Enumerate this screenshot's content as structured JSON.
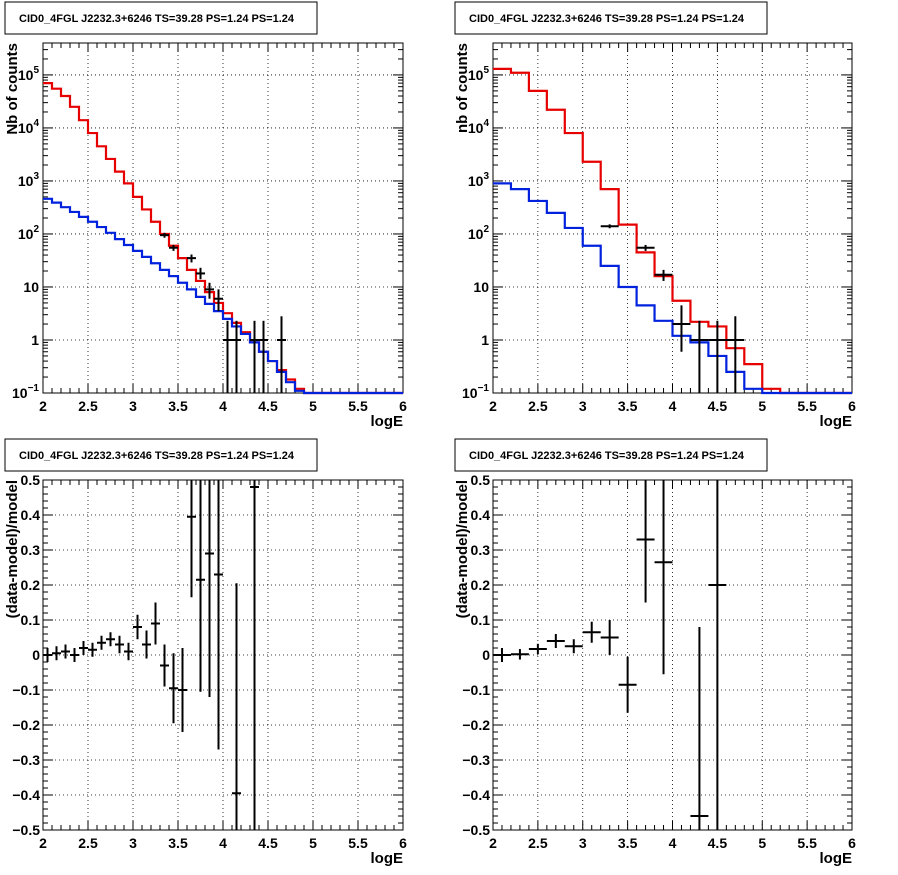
{
  "colors": {
    "data": "#000000",
    "model_total": "#e60000",
    "model_component": "#0022dd"
  },
  "chart_data": [
    {
      "id": "counts-left",
      "type": "line",
      "title": "CID0_4FGL J2232.3+6246 TS=39.28 PS=1.24 PS=1.24",
      "xlabel": "logE",
      "ylabel": "Nb of counts",
      "xlim": [
        2,
        6
      ],
      "ylim": [
        0.1,
        400000
      ],
      "yscale": "log",
      "grid": true,
      "xticks": [
        2,
        2.5,
        3,
        3.5,
        4,
        4.5,
        5,
        5.5,
        6
      ],
      "xtick_labels": [
        "2",
        "2.5",
        "3",
        "3.5",
        "4",
        "4.5",
        "5",
        "5.5",
        "6"
      ],
      "yticks": [
        0.1,
        1,
        10,
        100,
        1000,
        10000,
        100000
      ],
      "ytick_labels": [
        {
          "base": "10",
          "exp": "−1"
        },
        {
          "base": "1",
          "exp": ""
        },
        {
          "base": "10",
          "exp": ""
        },
        {
          "base": "10",
          "exp": "2"
        },
        {
          "base": "10",
          "exp": "3"
        },
        {
          "base": "10",
          "exp": "4"
        },
        {
          "base": "10",
          "exp": "5"
        }
      ],
      "bin_edges": [
        2.0,
        2.1,
        2.2,
        2.3,
        2.4,
        2.5,
        2.6,
        2.7,
        2.8,
        2.9,
        3.0,
        3.1,
        3.2,
        3.3,
        3.4,
        3.5,
        3.6,
        3.7,
        3.8,
        3.9,
        4.0,
        4.1,
        4.2,
        4.3,
        4.4,
        4.5,
        4.6,
        4.7,
        4.8,
        4.9,
        5.0,
        5.1,
        5.2,
        5.3,
        5.4,
        5.5,
        5.6,
        5.7,
        5.8,
        5.9,
        6.0
      ],
      "series": [
        {
          "key": "model_total",
          "style": "step",
          "values": [
            70000,
            55000,
            40000,
            25000,
            14000,
            8000,
            4500,
            2600,
            1500,
            900,
            500,
            290,
            170,
            100,
            60,
            35,
            21,
            13,
            8,
            5,
            3.2,
            2.1,
            1.4,
            0.9,
            0.6,
            0.4,
            0.27,
            0.18,
            0.12,
            0.1,
            0.1,
            0.1,
            0.1,
            0.1,
            0.1,
            0.1,
            0.1,
            0.1,
            0.1,
            0.1
          ]
        },
        {
          "key": "model_component",
          "style": "step",
          "values": [
            460,
            390,
            320,
            260,
            210,
            170,
            135,
            105,
            80,
            62,
            48,
            37,
            28,
            21,
            16,
            12,
            9,
            6.5,
            4.8,
            3.5,
            2.5,
            1.8,
            1.3,
            0.9,
            0.6,
            0.4,
            0.25,
            0.16,
            0.11,
            0.1,
            0.1,
            0.1,
            0.1,
            0.1,
            0.1,
            0.1,
            0.1,
            0.1,
            0.1,
            0.1
          ]
        },
        {
          "key": "data",
          "style": "points",
          "points": [
            {
              "x": 3.35,
              "y": 95,
              "yerr": [
                10,
                10
              ]
            },
            {
              "x": 3.45,
              "y": 55,
              "yerr": [
                7,
                7
              ]
            },
            {
              "x": 3.65,
              "y": 35,
              "yerr": [
                6,
                6
              ]
            },
            {
              "x": 3.75,
              "y": 18,
              "yerr": [
                4,
                5
              ]
            },
            {
              "x": 3.85,
              "y": 9,
              "yerr": [
                3,
                3
              ]
            },
            {
              "x": 3.95,
              "y": 6,
              "yerr": [
                2.5,
                3
              ]
            },
            {
              "x": 4.05,
              "y": 1,
              "yerr": [
                0.95,
                1.3
              ]
            },
            {
              "x": 4.15,
              "y": 1,
              "yerr": [
                0.95,
                1.3
              ]
            },
            {
              "x": 4.35,
              "y": 1,
              "yerr": [
                0.95,
                1.3
              ]
            },
            {
              "x": 4.45,
              "y": 1,
              "yerr": [
                0.95,
                1.3
              ]
            },
            {
              "x": 4.65,
              "y": 1,
              "yerr": [
                0.95,
                1.8
              ]
            }
          ]
        }
      ]
    },
    {
      "id": "counts-right",
      "type": "line",
      "title": "CID0_4FGL J2232.3+6246 TS=39.28 PS=1.24 PS=1.24",
      "xlabel": "logE",
      "ylabel": "nb of counts",
      "xlim": [
        2,
        6
      ],
      "ylim": [
        0.1,
        400000
      ],
      "yscale": "log",
      "grid": true,
      "xticks": [
        2,
        2.5,
        3,
        3.5,
        4,
        4.5,
        5,
        5.5,
        6
      ],
      "xtick_labels": [
        "2",
        "2.5",
        "3",
        "3.5",
        "4",
        "4.5",
        "5",
        "5.5",
        "6"
      ],
      "yticks": [
        0.1,
        1,
        10,
        100,
        1000,
        10000,
        100000
      ],
      "ytick_labels": [
        {
          "base": "10",
          "exp": "−1"
        },
        {
          "base": "1",
          "exp": ""
        },
        {
          "base": "10",
          "exp": ""
        },
        {
          "base": "10",
          "exp": "2"
        },
        {
          "base": "10",
          "exp": "3"
        },
        {
          "base": "10",
          "exp": "4"
        },
        {
          "base": "10",
          "exp": "5"
        }
      ],
      "bin_edges": [
        2.0,
        2.2,
        2.4,
        2.6,
        2.8,
        3.0,
        3.2,
        3.4,
        3.6,
        3.8,
        4.0,
        4.2,
        4.4,
        4.6,
        4.8,
        5.0,
        5.2,
        5.4,
        5.6,
        5.8,
        6.0
      ],
      "series": [
        {
          "key": "model_total",
          "style": "step",
          "values": [
            130000,
            110000,
            50000,
            22000,
            8000,
            2300,
            700,
            150,
            45,
            16,
            5.5,
            2.2,
            1.8,
            0.7,
            0.35,
            0.12,
            0.1,
            0.1,
            0.1,
            0.1
          ]
        },
        {
          "key": "model_component",
          "style": "step",
          "values": [
            900,
            700,
            420,
            250,
            130,
            60,
            25,
            10,
            4.5,
            2.3,
            1.2,
            0.9,
            0.5,
            0.25,
            0.12,
            0.1,
            0.1,
            0.1,
            0.1,
            0.1
          ]
        },
        {
          "key": "data",
          "style": "points",
          "points": [
            {
              "x": 3.3,
              "y": 140,
              "yerr": [
                12,
                12
              ]
            },
            {
              "x": 3.7,
              "y": 55,
              "yerr": [
                7,
                7
              ]
            },
            {
              "x": 3.9,
              "y": 17,
              "yerr": [
                4,
                4
              ]
            },
            {
              "x": 4.1,
              "y": 2,
              "yerr": [
                1.4,
                2.5
              ]
            },
            {
              "x": 4.3,
              "y": 1,
              "yerr": [
                0.95,
                1.3
              ]
            },
            {
              "x": 4.5,
              "y": 1,
              "yerr": [
                0.95,
                1.3
              ]
            },
            {
              "x": 4.7,
              "y": 1,
              "yerr": [
                0.95,
                1.8
              ]
            }
          ]
        }
      ]
    },
    {
      "id": "residuals-left",
      "type": "scatter",
      "title": "CID0_4FGL J2232.3+6246 TS=39.28 PS=1.24 PS=1.24",
      "xlabel": "logE",
      "ylabel": "(data-model)/model",
      "xlim": [
        2,
        6
      ],
      "ylim": [
        -0.5,
        0.5
      ],
      "yscale": "linear",
      "grid": true,
      "xticks": [
        2,
        2.5,
        3,
        3.5,
        4,
        4.5,
        5,
        5.5,
        6
      ],
      "xtick_labels": [
        "2",
        "2.5",
        "3",
        "3.5",
        "4",
        "4.5",
        "5",
        "5.5",
        "6"
      ],
      "yticks": [
        -0.5,
        -0.4,
        -0.3,
        -0.2,
        -0.1,
        0,
        0.1,
        0.2,
        0.3,
        0.4,
        0.5
      ],
      "ytick_labels": [
        "−0.5",
        "−0.4",
        "−0.3",
        "−0.2",
        "−0.1",
        "0",
        "0.1",
        "0.2",
        "0.3",
        "0.4",
        "0.5"
      ],
      "series": [
        {
          "key": "data",
          "style": "points",
          "xhalf": 0.05,
          "points": [
            {
              "x": 2.05,
              "y": 0.0,
              "yerr": [
                0.02,
                0.02
              ]
            },
            {
              "x": 2.15,
              "y": 0.005,
              "yerr": [
                0.02,
                0.02
              ]
            },
            {
              "x": 2.25,
              "y": 0.01,
              "yerr": [
                0.02,
                0.02
              ]
            },
            {
              "x": 2.35,
              "y": 0.0,
              "yerr": [
                0.02,
                0.02
              ]
            },
            {
              "x": 2.45,
              "y": 0.02,
              "yerr": [
                0.02,
                0.02
              ]
            },
            {
              "x": 2.55,
              "y": 0.015,
              "yerr": [
                0.02,
                0.02
              ]
            },
            {
              "x": 2.65,
              "y": 0.035,
              "yerr": [
                0.02,
                0.02
              ]
            },
            {
              "x": 2.75,
              "y": 0.045,
              "yerr": [
                0.02,
                0.02
              ]
            },
            {
              "x": 2.85,
              "y": 0.03,
              "yerr": [
                0.025,
                0.025
              ]
            },
            {
              "x": 2.95,
              "y": 0.01,
              "yerr": [
                0.025,
                0.025
              ]
            },
            {
              "x": 3.05,
              "y": 0.08,
              "yerr": [
                0.035,
                0.035
              ]
            },
            {
              "x": 3.15,
              "y": 0.03,
              "yerr": [
                0.04,
                0.04
              ]
            },
            {
              "x": 3.25,
              "y": 0.09,
              "yerr": [
                0.06,
                0.06
              ]
            },
            {
              "x": 3.35,
              "y": -0.03,
              "yerr": [
                0.06,
                0.06
              ]
            },
            {
              "x": 3.45,
              "y": -0.095,
              "yerr": [
                0.1,
                0.1
              ]
            },
            {
              "x": 3.55,
              "y": -0.1,
              "yerr": [
                0.12,
                0.12
              ]
            },
            {
              "x": 3.65,
              "y": 0.395,
              "yerr": [
                0.23,
                0.23
              ]
            },
            {
              "x": 3.75,
              "y": 0.215,
              "yerr": [
                0.32,
                0.32
              ]
            },
            {
              "x": 3.85,
              "y": 0.29,
              "yerr": [
                0.41,
                0.41
              ]
            },
            {
              "x": 3.95,
              "y": 0.23,
              "yerr": [
                0.5,
                0.5
              ]
            },
            {
              "x": 4.15,
              "y": -0.395,
              "yerr": [
                0.6,
                0.6
              ]
            },
            {
              "x": 4.35,
              "y": 0.48,
              "yerr": [
                0.98,
                0.98
              ]
            }
          ]
        }
      ]
    },
    {
      "id": "residuals-right",
      "type": "scatter",
      "title": "CID0_4FGL J2232.3+6246 TS=39.28 PS=1.24 PS=1.24",
      "xlabel": "logE",
      "ylabel": "(data-model)/model",
      "xlim": [
        2,
        6
      ],
      "ylim": [
        -0.5,
        0.5
      ],
      "yscale": "linear",
      "grid": true,
      "xticks": [
        2,
        2.5,
        3,
        3.5,
        4,
        4.5,
        5,
        5.5,
        6
      ],
      "xtick_labels": [
        "2",
        "2.5",
        "3",
        "3.5",
        "4",
        "4.5",
        "5",
        "5.5",
        "6"
      ],
      "yticks": [
        -0.5,
        -0.4,
        -0.3,
        -0.2,
        -0.1,
        0,
        0.1,
        0.2,
        0.3,
        0.4,
        0.5
      ],
      "ytick_labels": [
        "−0.5",
        "−0.4",
        "−0.3",
        "−0.2",
        "−0.1",
        "0",
        "0.1",
        "0.2",
        "0.3",
        "0.4",
        "0.5"
      ],
      "series": [
        {
          "key": "data",
          "style": "points",
          "xhalf": 0.1,
          "points": [
            {
              "x": 2.1,
              "y": 0.0,
              "yerr": [
                0.02,
                0.02
              ]
            },
            {
              "x": 2.3,
              "y": 0.002,
              "yerr": [
                0.015,
                0.015
              ]
            },
            {
              "x": 2.5,
              "y": 0.017,
              "yerr": [
                0.015,
                0.015
              ]
            },
            {
              "x": 2.7,
              "y": 0.04,
              "yerr": [
                0.02,
                0.02
              ]
            },
            {
              "x": 2.9,
              "y": 0.025,
              "yerr": [
                0.02,
                0.02
              ]
            },
            {
              "x": 3.1,
              "y": 0.065,
              "yerr": [
                0.03,
                0.03
              ]
            },
            {
              "x": 3.3,
              "y": 0.05,
              "yerr": [
                0.05,
                0.05
              ]
            },
            {
              "x": 3.5,
              "y": -0.085,
              "yerr": [
                0.08,
                0.08
              ]
            },
            {
              "x": 3.7,
              "y": 0.33,
              "yerr": [
                0.18,
                0.18
              ]
            },
            {
              "x": 3.9,
              "y": 0.265,
              "yerr": [
                0.32,
                0.32
              ]
            },
            {
              "x": 4.3,
              "y": -0.46,
              "yerr": [
                0.54,
                0.54
              ]
            },
            {
              "x": 4.5,
              "y": 0.2,
              "yerr": [
                0.9,
                0.9
              ]
            }
          ]
        }
      ]
    }
  ]
}
